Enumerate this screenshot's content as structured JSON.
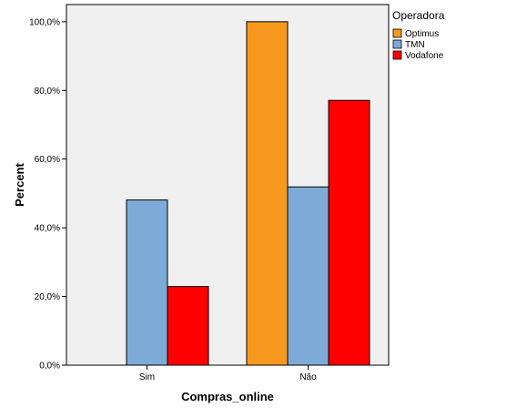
{
  "chart_data": {
    "type": "bar",
    "title": "",
    "xlabel": "Compras_online",
    "ylabel": "Percent",
    "categories": [
      "Sim",
      "Não"
    ],
    "series": [
      {
        "name": "Optimus",
        "values": [
          0,
          100
        ],
        "color": "#f7991e"
      },
      {
        "name": "TMN",
        "values": [
          48.1,
          51.9
        ],
        "color": "#7eaad8"
      },
      {
        "name": "Vodafone",
        "values": [
          22.9,
          77.1
        ],
        "color": "#ff0000"
      }
    ],
    "ylim": [
      0,
      105
    ],
    "yticks": [
      0,
      20,
      40,
      60,
      80,
      100
    ],
    "ytick_labels": [
      "0,0%",
      "20,0%",
      "40,0%",
      "60,0%",
      "80,0%",
      "100,0%"
    ],
    "legend_title": "Operadora",
    "legend_position": "top-right outside",
    "plot_background": "#f0f0f0",
    "grid": false
  }
}
